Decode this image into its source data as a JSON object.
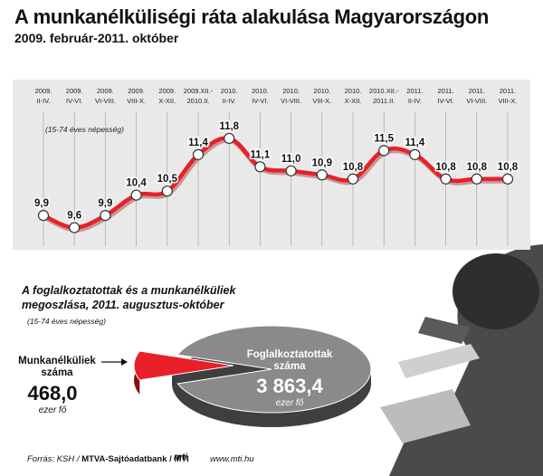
{
  "header": {
    "title": "A munkanélküliségi ráta alakulása Magyarországon",
    "subtitle": "2009. február-2011. október"
  },
  "chart_data": [
    {
      "type": "line",
      "note": "(15-74 éves népesség)",
      "x_labels": [
        [
          "2009.",
          "II-IV."
        ],
        [
          "2009.",
          "IV-VI."
        ],
        [
          "2009.",
          "VI-VIII."
        ],
        [
          "2009.",
          "VIII-X."
        ],
        [
          "2009.",
          "X-XII."
        ],
        [
          "2009.XII.-",
          "2010.II."
        ],
        [
          "2010.",
          "II-IV."
        ],
        [
          "2010.",
          "IV-VI."
        ],
        [
          "2010.",
          "VI-VIII."
        ],
        [
          "2010.",
          "VIII-X."
        ],
        [
          "2010.",
          "X-XII."
        ],
        [
          "2010.XII.-",
          "2011.II."
        ],
        [
          "2011.",
          "II-IV."
        ],
        [
          "2011.",
          "IV-VI."
        ],
        [
          "2011.",
          "VI-VIII."
        ],
        [
          "2011.",
          "VIII-X."
        ]
      ],
      "series": [
        {
          "values": [
            9.9,
            9.6,
            9.9,
            10.4,
            10.5,
            11.4,
            11.8,
            11.1,
            11.0,
            10.9,
            10.8,
            11.5,
            11.4,
            10.8,
            10.8,
            10.8
          ],
          "color": "#e8202a"
        }
      ],
      "value_labels": [
        "9,9",
        "9,6",
        "9,9",
        "10,4",
        "10,5",
        "11,4",
        "11,8",
        "11,1",
        "11,0",
        "10,9",
        "10,8",
        "11,5",
        "11,4",
        "10,8",
        "10,8",
        "10,8"
      ],
      "ylim": [
        9.3,
        12.2
      ],
      "grid": "vertical"
    },
    {
      "type": "pie",
      "title": "A foglalkoztatottak és a munkanélküliek megoszlása, 2011. augusztus-október",
      "note": "(15-74 éves népesség)",
      "slices": [
        {
          "label": "Munkanélküliek száma",
          "value": 468.0,
          "value_text": "468,0",
          "unit": "ezer fő",
          "color": "#e8202a"
        },
        {
          "label": "Foglalkoztatottak száma",
          "value": 3863.4,
          "value_text": "3 863,4",
          "unit": "ezer fő",
          "color": "#8a8a8a"
        }
      ]
    }
  ],
  "footer": {
    "source_prefix": "Forrás: KSH / ",
    "source_bold": "MTVA-Sajtóadatbank / MTI",
    "logo": "mti",
    "website": "www.mti.hu"
  }
}
